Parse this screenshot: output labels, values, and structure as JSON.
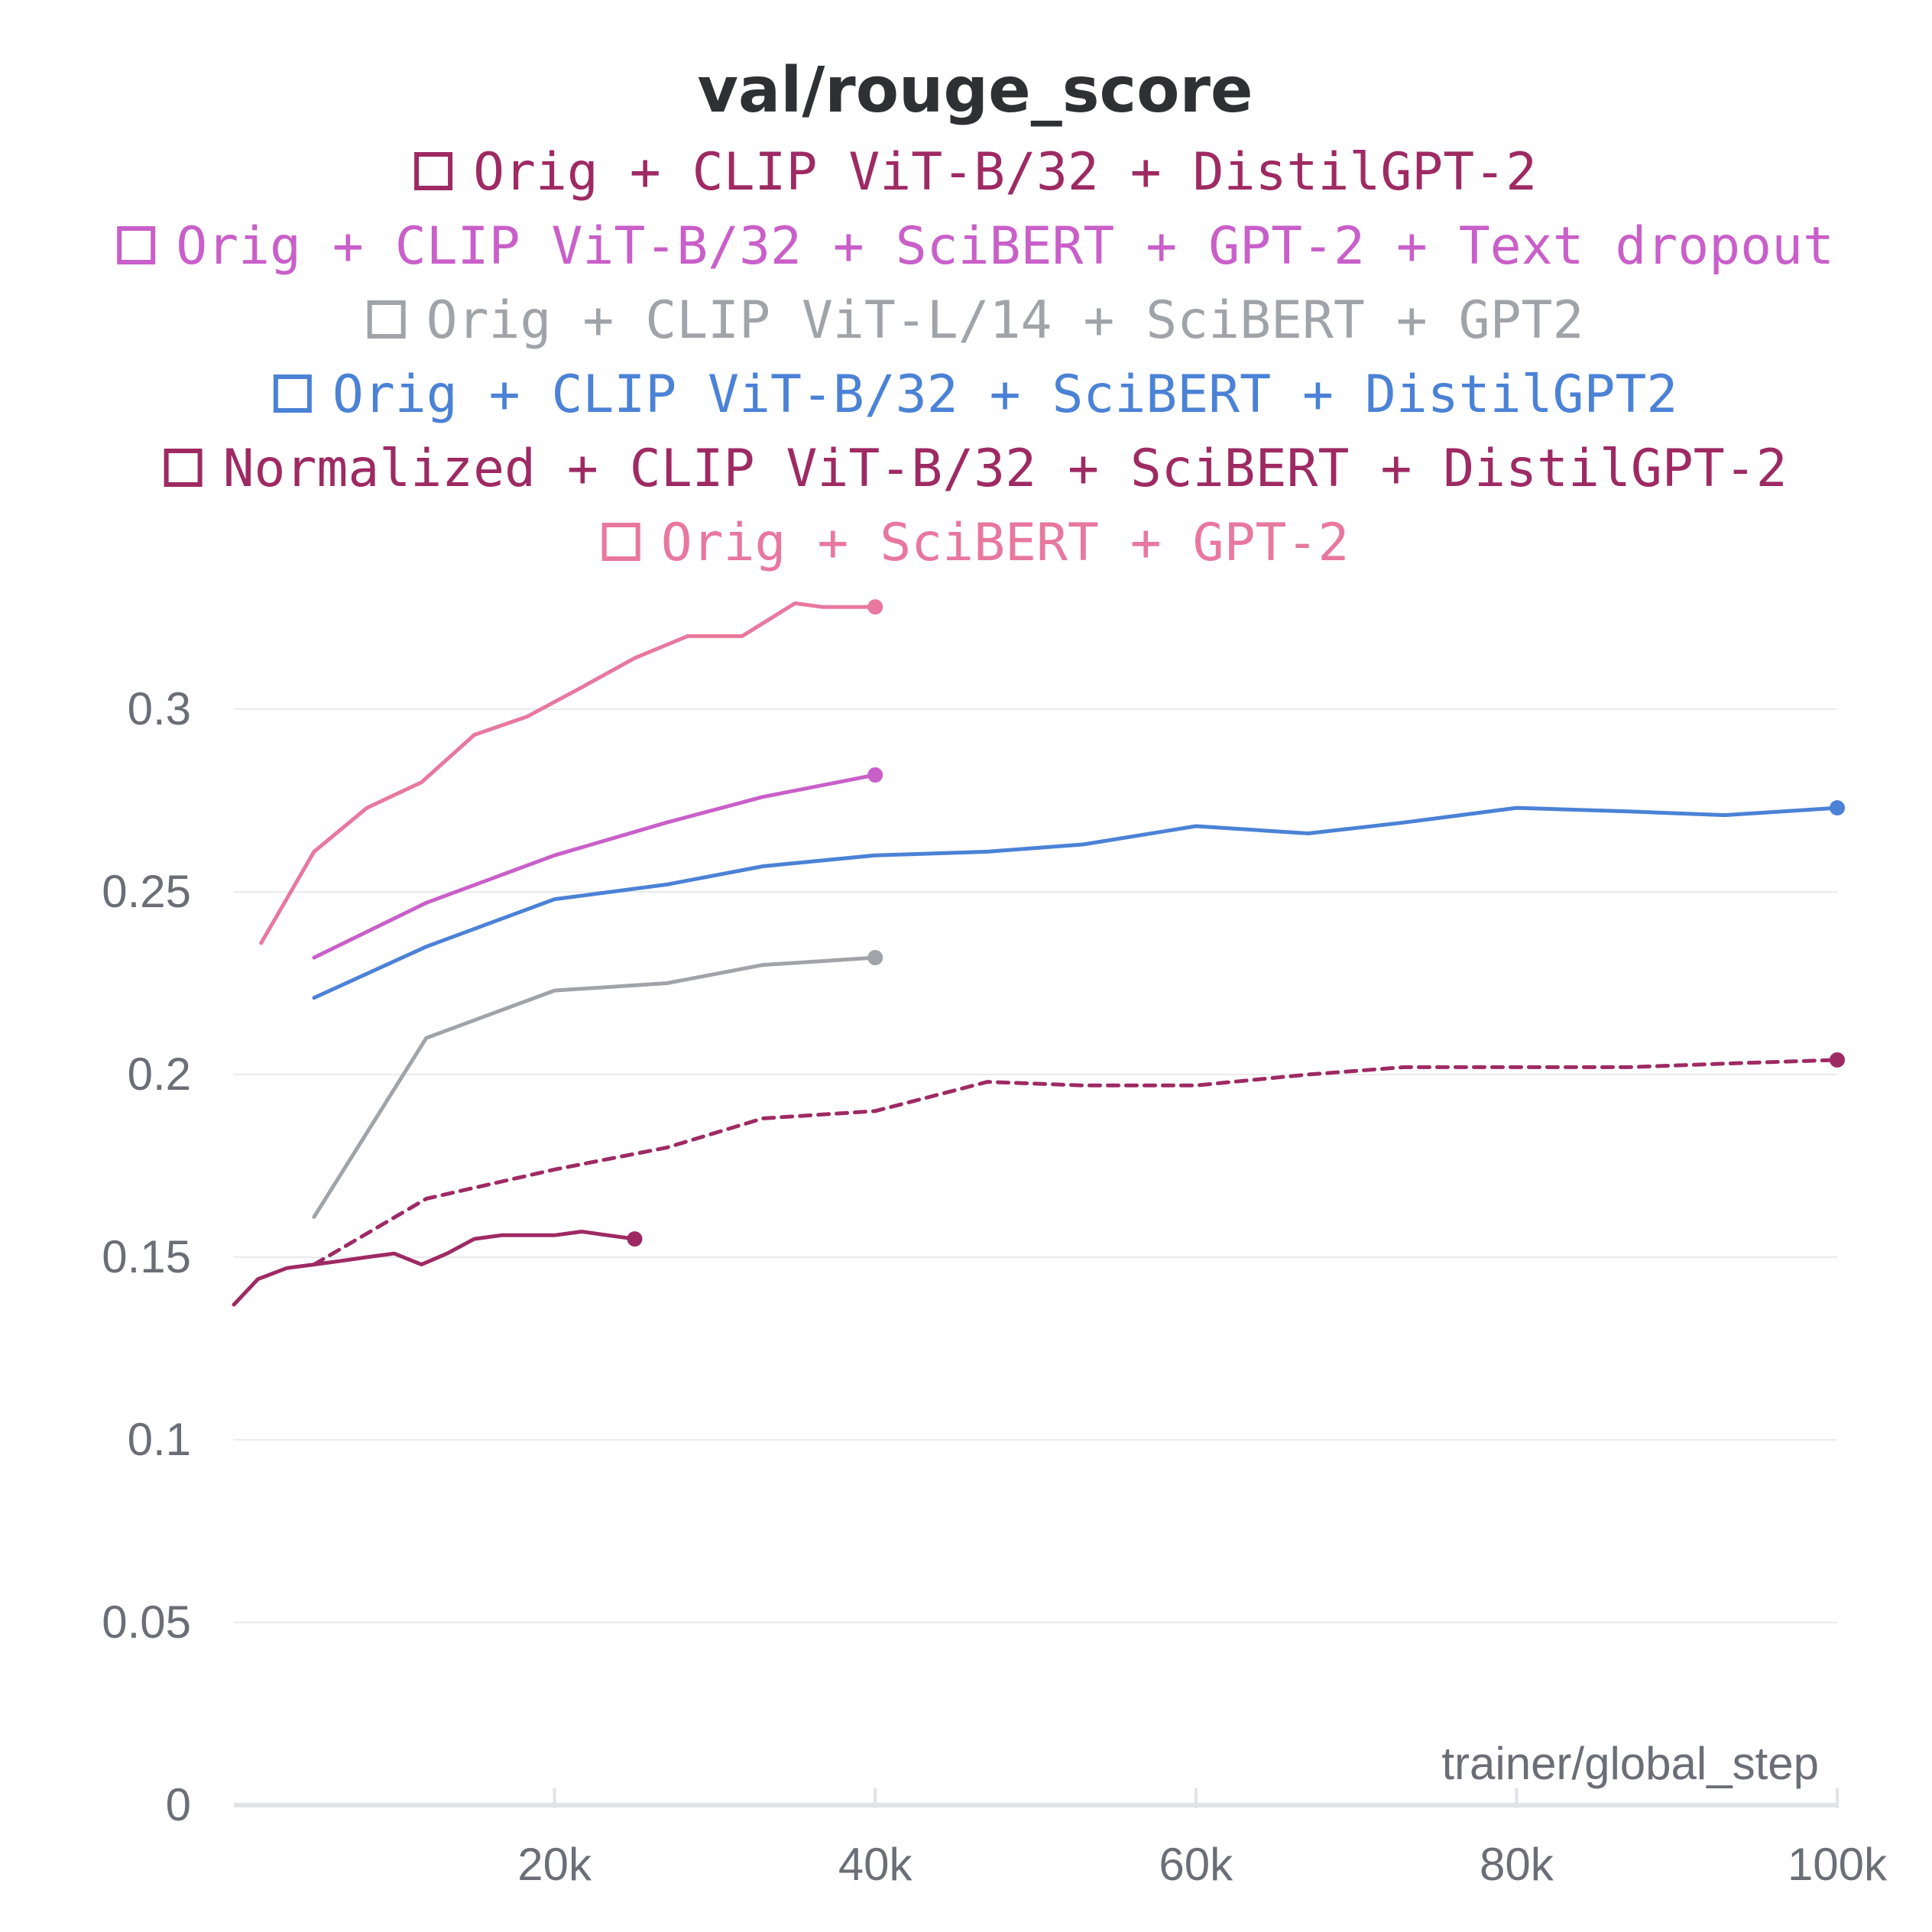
{
  "chart_data": {
    "type": "line",
    "title": "val/rouge_score",
    "xlabel": "trainer/global_step",
    "ylabel": "",
    "xlim": [
      0,
      100000
    ],
    "ylim": [
      0,
      0.34
    ],
    "x_ticks": [
      20000,
      40000,
      60000,
      80000,
      100000
    ],
    "x_tick_labels": [
      "20k",
      "40k",
      "60k",
      "80k",
      "100k"
    ],
    "y_ticks": [
      0,
      0.05,
      0.1,
      0.15,
      0.2,
      0.25,
      0.3
    ],
    "y_tick_labels": [
      "0",
      "0.05",
      "0.1",
      "0.15",
      "0.2",
      "0.25",
      "0.3"
    ],
    "legend_position": "top-center",
    "series": [
      {
        "name": "Orig + CLIP ViT-B/32 + DistilGPT-2",
        "color": "#9e2a63",
        "dash": "dashed",
        "x": [
          5000,
          12000,
          20000,
          27000,
          33000,
          40000,
          47000,
          53000,
          60000,
          67000,
          73000,
          80000,
          87000,
          93000,
          100000
        ],
        "y": [
          0.148,
          0.166,
          0.174,
          0.18,
          0.188,
          0.19,
          0.198,
          0.197,
          0.197,
          0.2,
          0.202,
          0.202,
          0.202,
          0.203,
          0.204
        ]
      },
      {
        "name": "Orig + CLIP ViT-B/32 + SciBERT + GPT-2 + Text dropout",
        "color": "#c95fc9",
        "dash": "solid",
        "x": [
          5000,
          12000,
          20000,
          27000,
          33000,
          40000
        ],
        "y": [
          0.232,
          0.247,
          0.26,
          0.269,
          0.276,
          0.282
        ]
      },
      {
        "name": "Orig + CLIP ViT-L/14 + SciBERT + GPT2",
        "color": "#a0a4a8",
        "dash": "solid",
        "x": [
          5000,
          12000,
          20000,
          27000,
          33000,
          40000
        ],
        "y": [
          0.161,
          0.21,
          0.223,
          0.225,
          0.23,
          0.232
        ]
      },
      {
        "name": "Orig + CLIP ViT-B/32 + SciBERT + DistilGPT2",
        "color": "#4b82d6",
        "dash": "solid",
        "x": [
          5000,
          12000,
          20000,
          27000,
          33000,
          40000,
          47000,
          53000,
          60000,
          67000,
          73000,
          80000,
          87000,
          93000,
          100000
        ],
        "y": [
          0.221,
          0.235,
          0.248,
          0.252,
          0.257,
          0.26,
          0.261,
          0.263,
          0.268,
          0.266,
          0.269,
          0.273,
          0.272,
          0.271,
          0.273
        ]
      },
      {
        "name": "Normalized + CLIP ViT-B/32 + SciBERT + DistilGPT-2",
        "color": "#9e2a63",
        "dash": "solid",
        "x": [
          0,
          1500,
          3300,
          5000,
          6700,
          8300,
          10000,
          11700,
          13300,
          15000,
          16700,
          18300,
          20000,
          21700,
          23300,
          25000
        ],
        "y": [
          0.137,
          0.144,
          0.147,
          0.148,
          0.149,
          0.15,
          0.151,
          0.148,
          0.151,
          0.155,
          0.156,
          0.156,
          0.156,
          0.157,
          0.156,
          0.155
        ]
      },
      {
        "name": "Orig + SciBERT + GPT-2",
        "color": "#e8789d",
        "dash": "solid",
        "x": [
          1700,
          5000,
          8300,
          11700,
          15000,
          18300,
          21700,
          25000,
          28300,
          31700,
          35000,
          36700,
          40000
        ],
        "y": [
          0.236,
          0.261,
          0.273,
          0.28,
          0.293,
          0.298,
          0.306,
          0.314,
          0.32,
          0.32,
          0.329,
          0.328,
          0.328
        ]
      }
    ]
  }
}
